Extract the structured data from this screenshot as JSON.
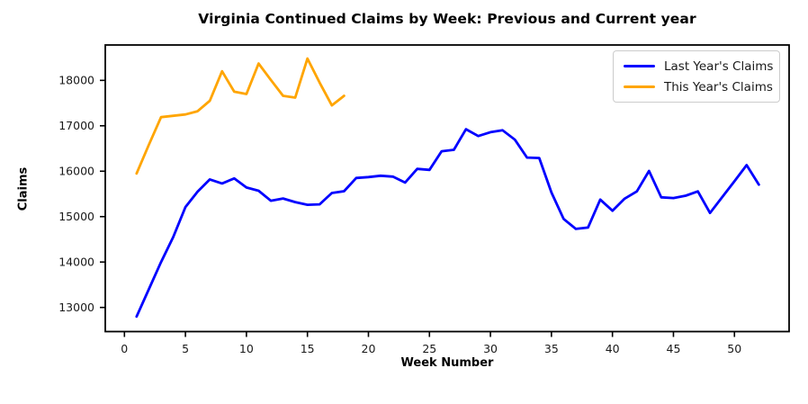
{
  "figure": {
    "title": "Virginia Continued Claims by Week: Previous and Current year",
    "xlabel": "Week Number",
    "ylabel": "Claims"
  },
  "chart_data": {
    "type": "line",
    "title": "Virginia Continued Claims by Week: Previous and Current year",
    "xlabel": "Week Number",
    "ylabel": "Claims",
    "x_ticks": [
      0,
      5,
      10,
      15,
      20,
      25,
      30,
      35,
      40,
      45,
      50
    ],
    "y_ticks": [
      13000,
      14000,
      15000,
      16000,
      17000,
      18000
    ],
    "xlim": [
      -1.57,
      54.48
    ],
    "ylim": [
      12469,
      18779
    ],
    "grid": false,
    "legend_position": "upper right",
    "series": [
      {
        "name": "Last Year's Claims",
        "color": "#0000ff",
        "x": [
          1,
          2,
          3,
          4,
          5,
          6,
          7,
          8,
          9,
          10,
          11,
          12,
          13,
          14,
          15,
          16,
          17,
          18,
          19,
          20,
          21,
          22,
          23,
          24,
          25,
          26,
          27,
          28,
          29,
          30,
          31,
          32,
          33,
          34,
          35,
          36,
          37,
          38,
          39,
          40,
          41,
          42,
          43,
          44,
          45,
          46,
          47,
          48,
          49,
          50,
          51,
          52
        ],
        "values": [
          12800,
          13400,
          14000,
          14550,
          15210,
          15550,
          15820,
          15730,
          15840,
          15640,
          15570,
          15350,
          15400,
          15320,
          15260,
          15270,
          15520,
          15560,
          15850,
          15870,
          15900,
          15880,
          15750,
          16050,
          16030,
          16440,
          16470,
          16925,
          16775,
          16860,
          16900,
          16695,
          16300,
          16290,
          15530,
          14950,
          14730,
          14760,
          15375,
          15130,
          15395,
          15555,
          16005,
          15425,
          15410,
          15460,
          15555,
          15080,
          15430,
          15780,
          16135,
          15705
        ]
      },
      {
        "name": "This Year's Claims",
        "color": "#ffa500",
        "x": [
          1,
          2,
          3,
          4,
          5,
          6,
          7,
          8,
          9,
          10,
          11,
          12,
          13,
          14,
          15,
          16,
          17,
          18
        ],
        "values": [
          15950,
          16580,
          17190,
          17220,
          17250,
          17320,
          17550,
          18200,
          17750,
          17700,
          18370,
          18010,
          17660,
          17620,
          18480,
          17950,
          17450,
          17660
        ]
      }
    ]
  }
}
